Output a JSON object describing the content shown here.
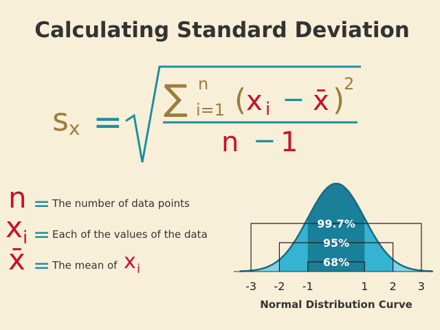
{
  "title": "Calculating Standard Deviation",
  "formula": {
    "lhs": "s",
    "lhs_sub": "x",
    "equals": "=",
    "sum": "∑",
    "sum_top": "n",
    "sum_bottom": "i=1",
    "open_paren": "(",
    "term": "x",
    "term_sub": "i",
    "minus": "−",
    "mean": "x̄",
    "close_paren": ")",
    "power": "2",
    "denominator_n": "n",
    "denominator_minus": "−",
    "denominator_one": "1"
  },
  "definitions": [
    {
      "symbol": "n",
      "symbol_sub": "",
      "equals": "=",
      "text": "The number of data points"
    },
    {
      "symbol": "x",
      "symbol_sub": "i",
      "equals": "=",
      "text": "Each of the values of the data"
    },
    {
      "symbol": "x̄",
      "symbol_sub": "",
      "equals": "=",
      "text": "The mean of",
      "text_symbol": "x",
      "text_symbol_sub": "i"
    }
  ],
  "distribution": {
    "bands": [
      "99.7%",
      "95%",
      "68%"
    ],
    "xticks": [
      -3,
      -2,
      -1,
      1,
      2,
      3
    ],
    "caption": "Normal Distribution Curve"
  }
}
